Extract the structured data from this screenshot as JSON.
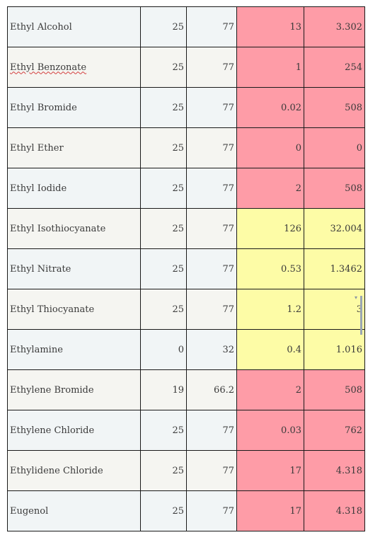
{
  "table": {
    "rows": [
      {
        "name": "Ethyl Alcohol",
        "t1": "25",
        "t2": "77",
        "v1": "13",
        "v2": "3.302",
        "level": "red",
        "spell": false
      },
      {
        "name": "Ethyl Benzonate",
        "t1": "25",
        "t2": "77",
        "v1": "1",
        "v2": "254",
        "level": "red",
        "spell": true
      },
      {
        "name": "Ethyl Bromide",
        "t1": "25",
        "t2": "77",
        "v1": "0.02",
        "v2": "508",
        "level": "red",
        "spell": false
      },
      {
        "name": "Ethyl Ether",
        "t1": "25",
        "t2": "77",
        "v1": "0",
        "v2": "0",
        "level": "red",
        "spell": false
      },
      {
        "name": "Ethyl Iodide",
        "t1": "25",
        "t2": "77",
        "v1": "2",
        "v2": "508",
        "level": "red",
        "spell": false
      },
      {
        "name": "Ethyl Isothiocyanate",
        "t1": "25",
        "t2": "77",
        "v1": "126",
        "v2": "32.004",
        "level": "yellow",
        "spell": false
      },
      {
        "name": "Ethyl Nitrate",
        "t1": "25",
        "t2": "77",
        "v1": "0.53",
        "v2": "1.3462",
        "level": "yellow",
        "spell": false
      },
      {
        "name": "Ethyl Thiocyanate",
        "t1": "25",
        "t2": "77",
        "v1": "1.2",
        "v2": "3",
        "level": "yellow",
        "spell": false
      },
      {
        "name": "Ethylamine",
        "t1": "0",
        "t2": "32",
        "v1": "0.4",
        "v2": "1.016",
        "level": "yellow",
        "spell": false
      },
      {
        "name": "Ethylene Bromide",
        "t1": "19",
        "t2": "66.2",
        "v1": "2",
        "v2": "508",
        "level": "red",
        "spell": false
      },
      {
        "name": "Ethylene Chloride",
        "t1": "25",
        "t2": "77",
        "v1": "0.03",
        "v2": "762",
        "level": "red",
        "spell": false
      },
      {
        "name": "Ethylidene Chloride",
        "t1": "25",
        "t2": "77",
        "v1": "17",
        "v2": "4.318",
        "level": "red",
        "spell": false
      },
      {
        "name": "Eugenol",
        "t1": "25",
        "t2": "77",
        "v1": "17",
        "v2": "4.318",
        "level": "red",
        "spell": false
      }
    ]
  },
  "colors": {
    "red_cell": "#fe9ca7",
    "yellow_cell": "#fdfca6"
  },
  "icons": {
    "scroll_arrow": "scroll-down-arrow-icon"
  }
}
